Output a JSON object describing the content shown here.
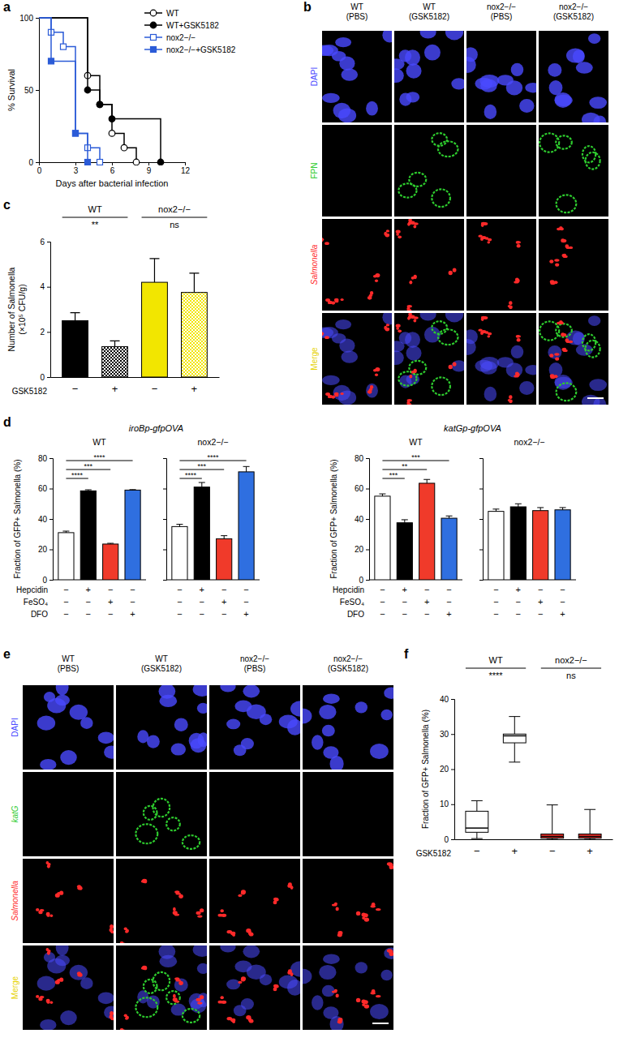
{
  "chart_data": [
    {
      "panel_label": "a",
      "type": "line",
      "x_label": "Days after bacterial infection",
      "y_label": "% Survival",
      "xlim": [
        0,
        12
      ],
      "xticks": [
        0,
        3,
        6,
        9,
        12
      ],
      "ylim": [
        0,
        100
      ],
      "yticks": [
        0,
        50,
        100
      ],
      "line_style": "step",
      "legend": "upper right",
      "series": [
        {
          "name": "WT",
          "color": "#000000",
          "marker": "open-circle",
          "x": [
            0,
            4,
            5,
            6,
            7,
            8
          ],
          "values": [
            100,
            60,
            40,
            20,
            10,
            0
          ]
        },
        {
          "name": "WT+GSK5182",
          "color": "#000000",
          "marker": "filled-circle",
          "x": [
            0,
            4,
            5,
            6,
            10
          ],
          "values": [
            100,
            50,
            40,
            30,
            0
          ]
        },
        {
          "name": "nox2−/−",
          "color": "#2b5bd7",
          "marker": "open-square",
          "x": [
            0,
            1,
            2,
            3,
            4,
            5
          ],
          "values": [
            100,
            90,
            80,
            20,
            10,
            0
          ]
        },
        {
          "name": "nox2−/−+GSK5182",
          "color": "#2b5bd7",
          "marker": "filled-square",
          "x": [
            0,
            1,
            3,
            4
          ],
          "values": [
            100,
            70,
            20,
            0
          ]
        }
      ]
    },
    {
      "panel_label": "b",
      "type": "image",
      "columns": [
        [
          "WT",
          "(PBS)"
        ],
        [
          "WT",
          "(GSK5182)"
        ],
        [
          "nox2−/−",
          "(PBS)"
        ],
        [
          "nox2−/−",
          "(GSK5182)"
        ]
      ],
      "rows": [
        {
          "name": "DAPI",
          "color": "#4a4aff"
        },
        {
          "name": "FPN",
          "color": "#2ecc2e"
        },
        {
          "name": "Salmonella",
          "color": "#ff2a2a"
        },
        {
          "name": "Merge",
          "color": "#e6d200"
        }
      ]
    },
    {
      "panel_label": "c",
      "type": "bar",
      "y_label": [
        "Number of Salmonella",
        "(×10⁵ CFU/g)"
      ],
      "x_label": "GSK5182",
      "ylim": [
        0,
        6
      ],
      "yticks": [
        0,
        2,
        4,
        6
      ],
      "categories": [
        "−",
        "+",
        "−",
        "+"
      ],
      "groups": [
        {
          "name": "WT",
          "members": [
            0,
            1
          ],
          "annotation": "**"
        },
        {
          "name": "nox2−/−",
          "members": [
            2,
            3
          ],
          "annotation": "ns"
        }
      ],
      "values": [
        2.5,
        1.35,
        4.2,
        3.75
      ],
      "errors": [
        0.35,
        0.25,
        1.05,
        0.85
      ],
      "colors": [
        "#000000",
        "#000000",
        "#f2e600",
        "#f2e600"
      ]
    },
    {
      "panel_label": "d",
      "type": "bar",
      "y_label": "Fraction of GFP+ Salmonella (%)",
      "ylim": [
        0,
        80
      ],
      "yticks": [
        0,
        20,
        40,
        60,
        80
      ],
      "colors": [
        "#ffffff",
        "#000000",
        "#f03a2a",
        "#2f6fe0"
      ],
      "conditions": [
        {
          "name": "Hepcidin",
          "signs": [
            "−",
            "+",
            "−",
            "−"
          ]
        },
        {
          "name": "FeSO₄",
          "signs": [
            "−",
            "−",
            "+",
            "−"
          ]
        },
        {
          "name": "DFO",
          "signs": [
            "−",
            "−",
            "−",
            "+"
          ]
        }
      ],
      "reporters": [
        {
          "title": "iroBp-gfpOVA",
          "subplots": [
            {
              "title": "WT",
              "values": [
                31,
                58.5,
                23.5,
                59
              ],
              "errors": [
                1,
                0.7,
                0.5,
                0.3
              ],
              "comparisons": [
                {
                  "from": 0,
                  "to": 1,
                  "label": "****"
                },
                {
                  "from": 0,
                  "to": 2,
                  "label": "***"
                },
                {
                  "from": 0,
                  "to": 3,
                  "label": "****"
                }
              ]
            },
            {
              "title": "nox2−/−",
              "tick_labels": false,
              "values": [
                35,
                61,
                27,
                71
              ],
              "errors": [
                1.5,
                3,
                2,
                3.5
              ],
              "comparisons": [
                {
                  "from": 0,
                  "to": 1,
                  "label": "****"
                },
                {
                  "from": 0,
                  "to": 2,
                  "label": "***"
                },
                {
                  "from": 0,
                  "to": 3,
                  "label": "****"
                }
              ]
            }
          ]
        },
        {
          "title": "katGp-gfpOVA",
          "subplots": [
            {
              "title": "WT",
              "values": [
                55,
                37.5,
                63.5,
                40.5
              ],
              "errors": [
                1.5,
                2,
                2.5,
                1.5
              ],
              "comparisons": [
                {
                  "from": 0,
                  "to": 1,
                  "label": "***"
                },
                {
                  "from": 0,
                  "to": 2,
                  "label": "**"
                },
                {
                  "from": 0,
                  "to": 3,
                  "label": "***"
                }
              ]
            },
            {
              "title": "nox2−/−",
              "tick_labels": false,
              "values": [
                45,
                48,
                45.5,
                46
              ],
              "errors": [
                1.5,
                2,
                2,
                1.5
              ],
              "comparisons": []
            }
          ]
        }
      ]
    },
    {
      "panel_label": "e",
      "type": "image",
      "columns": [
        [
          "WT",
          "(PBS)"
        ],
        [
          "WT",
          "(GSK5182)"
        ],
        [
          "nox2−/−",
          "(PBS)"
        ],
        [
          "nox2−/−",
          "(GSK5182)"
        ]
      ],
      "rows": [
        {
          "name": "DAPI",
          "color": "#4a4aff"
        },
        {
          "name": "katG",
          "color": "#2ecc2e"
        },
        {
          "name": "Salmonella",
          "color": "#ff2a2a"
        },
        {
          "name": "Merge",
          "color": "#e6d200"
        }
      ]
    },
    {
      "panel_label": "f",
      "type": "box",
      "y_label": "Fraction of GFP+ Salmonella (%)",
      "x_label": "GSK5182",
      "ylim": [
        0,
        40
      ],
      "yticks": [
        0,
        10,
        20,
        30,
        40
      ],
      "categories": [
        "−",
        "+",
        "−",
        "+"
      ],
      "groups": [
        {
          "name": "WT",
          "members": [
            0,
            1
          ],
          "annotation": "****"
        },
        {
          "name": "nox2−/−",
          "members": [
            2,
            3
          ],
          "annotation": "ns"
        }
      ],
      "boxes": [
        {
          "min": 0.2,
          "q1": 2,
          "median": 3.2,
          "q3": 8,
          "max": 11
        },
        {
          "min": 22,
          "q1": 27.5,
          "median": 29.5,
          "q3": 30,
          "max": 35
        },
        {
          "min": 0,
          "q1": 0.3,
          "median": 0.8,
          "q3": 1.5,
          "max": 9.8
        },
        {
          "min": 0,
          "q1": 0.3,
          "median": 0.8,
          "q3": 1.5,
          "max": 8.5
        }
      ],
      "colors": [
        "#ffffff",
        "#ffffff",
        "#e8302a",
        "#e8302a"
      ]
    }
  ]
}
